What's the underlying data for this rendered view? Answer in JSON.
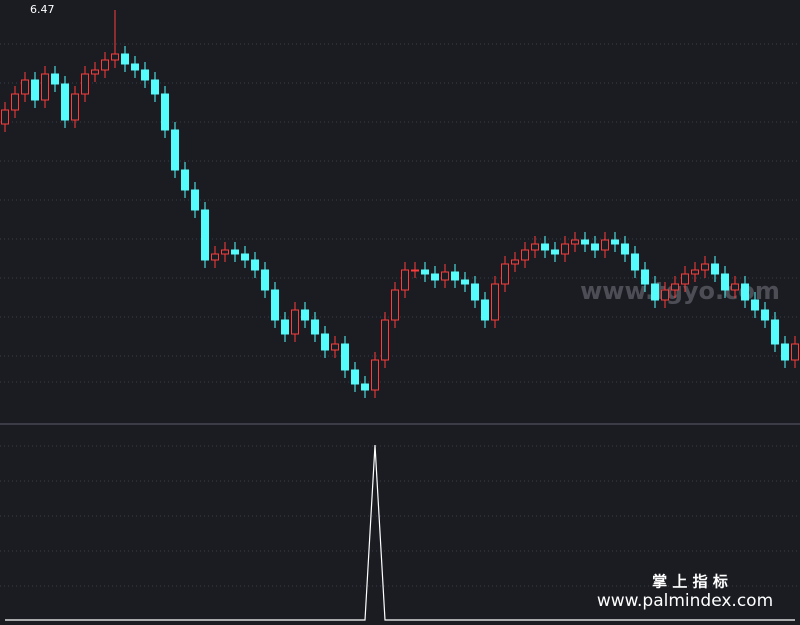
{
  "chart_data": {
    "type": "candlestick",
    "high_label": 6.47,
    "up_color": "#ff3c3c",
    "down_color": "#54fcfc",
    "ylim": [
      4.42,
      6.52
    ],
    "open": [
      5.9,
      5.97,
      6.05,
      6.12,
      6.02,
      6.15,
      6.1,
      5.92,
      6.05,
      6.15,
      6.17,
      6.22,
      6.25,
      6.2,
      6.17,
      6.12,
      6.05,
      5.87,
      5.67,
      5.57,
      5.47,
      5.22,
      5.25,
      5.27,
      5.25,
      5.22,
      5.17,
      5.07,
      4.92,
      4.85,
      4.97,
      4.92,
      4.85,
      4.77,
      4.8,
      4.67,
      4.6,
      4.57,
      4.72,
      4.92,
      5.07,
      5.17,
      5.17,
      5.15,
      5.12,
      5.16,
      5.12,
      5.1,
      5.02,
      4.92,
      5.1,
      5.2,
      5.22,
      5.27,
      5.3,
      5.27,
      5.25,
      5.3,
      5.32,
      5.3,
      5.27,
      5.32,
      5.3,
      5.25,
      5.17,
      5.1,
      5.02,
      5.07,
      5.1,
      5.15,
      5.17,
      5.2,
      5.15,
      5.07,
      5.1,
      5.02,
      4.97,
      4.92,
      4.8,
      4.72
    ],
    "high": [
      6.01,
      6.09,
      6.16,
      6.16,
      6.19,
      6.19,
      6.14,
      6.09,
      6.19,
      6.21,
      6.26,
      6.47,
      6.29,
      6.24,
      6.21,
      6.16,
      6.09,
      5.91,
      5.71,
      5.61,
      5.51,
      5.29,
      5.31,
      5.31,
      5.29,
      5.26,
      5.21,
      5.11,
      4.96,
      5.01,
      5.01,
      4.96,
      4.89,
      4.84,
      4.84,
      4.71,
      4.64,
      4.76,
      4.96,
      5.11,
      5.21,
      5.21,
      5.21,
      5.19,
      5.2,
      5.2,
      5.16,
      5.14,
      5.06,
      5.14,
      5.24,
      5.26,
      5.31,
      5.34,
      5.34,
      5.31,
      5.34,
      5.36,
      5.36,
      5.34,
      5.36,
      5.36,
      5.34,
      5.29,
      5.21,
      5.14,
      5.11,
      5.14,
      5.19,
      5.21,
      5.24,
      5.24,
      5.19,
      5.14,
      5.14,
      5.06,
      5.01,
      4.96,
      4.84,
      4.84
    ],
    "low": [
      5.86,
      5.93,
      6.01,
      5.98,
      5.98,
      6.06,
      5.88,
      5.88,
      6.01,
      6.11,
      6.13,
      6.18,
      6.16,
      6.13,
      6.08,
      6.01,
      5.83,
      5.63,
      5.53,
      5.43,
      5.18,
      5.18,
      5.21,
      5.21,
      5.18,
      5.13,
      5.03,
      4.88,
      4.81,
      4.81,
      4.88,
      4.81,
      4.73,
      4.73,
      4.63,
      4.56,
      4.53,
      4.53,
      4.68,
      4.88,
      5.03,
      5.13,
      5.11,
      5.08,
      5.08,
      5.08,
      5.06,
      4.98,
      4.88,
      4.88,
      5.06,
      5.16,
      5.18,
      5.23,
      5.23,
      5.21,
      5.21,
      5.26,
      5.26,
      5.23,
      5.23,
      5.26,
      5.21,
      5.13,
      5.06,
      4.98,
      4.98,
      5.03,
      5.06,
      5.11,
      5.13,
      5.11,
      5.03,
      5.03,
      4.98,
      4.93,
      4.88,
      4.76,
      4.68,
      4.68
    ],
    "close": [
      5.97,
      6.05,
      6.12,
      6.02,
      6.15,
      6.1,
      5.92,
      6.05,
      6.15,
      6.17,
      6.22,
      6.25,
      6.2,
      6.17,
      6.12,
      6.05,
      5.87,
      5.67,
      5.57,
      5.47,
      5.22,
      5.25,
      5.27,
      5.25,
      5.22,
      5.17,
      5.07,
      4.92,
      4.85,
      4.97,
      4.92,
      4.85,
      4.77,
      4.8,
      4.67,
      4.6,
      4.57,
      4.72,
      4.92,
      5.07,
      5.17,
      5.17,
      5.15,
      5.12,
      5.16,
      5.12,
      5.1,
      5.02,
      4.92,
      5.1,
      5.2,
      5.22,
      5.27,
      5.3,
      5.27,
      5.25,
      5.3,
      5.32,
      5.3,
      5.27,
      5.32,
      5.3,
      5.25,
      5.17,
      5.1,
      5.02,
      5.07,
      5.1,
      5.15,
      5.17,
      5.2,
      5.15,
      5.07,
      5.1,
      5.02,
      4.97,
      4.92,
      4.8,
      4.72,
      4.8
    ],
    "indicator": {
      "color": "#ffffff",
      "ylim": [
        0,
        1
      ],
      "values": [
        0,
        0,
        0,
        0,
        0,
        0,
        0,
        0,
        0,
        0,
        0,
        0,
        0,
        0,
        0,
        0,
        0,
        0,
        0,
        0,
        0,
        0,
        0,
        0,
        0,
        0,
        0,
        0,
        0,
        0,
        0,
        0,
        0,
        0,
        0,
        0,
        0,
        1,
        0,
        0,
        0,
        0,
        0,
        0,
        0,
        0,
        0,
        0,
        0,
        0,
        0,
        0,
        0,
        0,
        0,
        0,
        0,
        0,
        0,
        0,
        0,
        0,
        0,
        0,
        0,
        0,
        0,
        0,
        0,
        0,
        0,
        0,
        0,
        0,
        0,
        0,
        0,
        0,
        0,
        0
      ]
    }
  },
  "watermark": {
    "site": "www.tgyo.com",
    "brand": "掌 上 指 标",
    "url": "www.palmindex.com"
  }
}
